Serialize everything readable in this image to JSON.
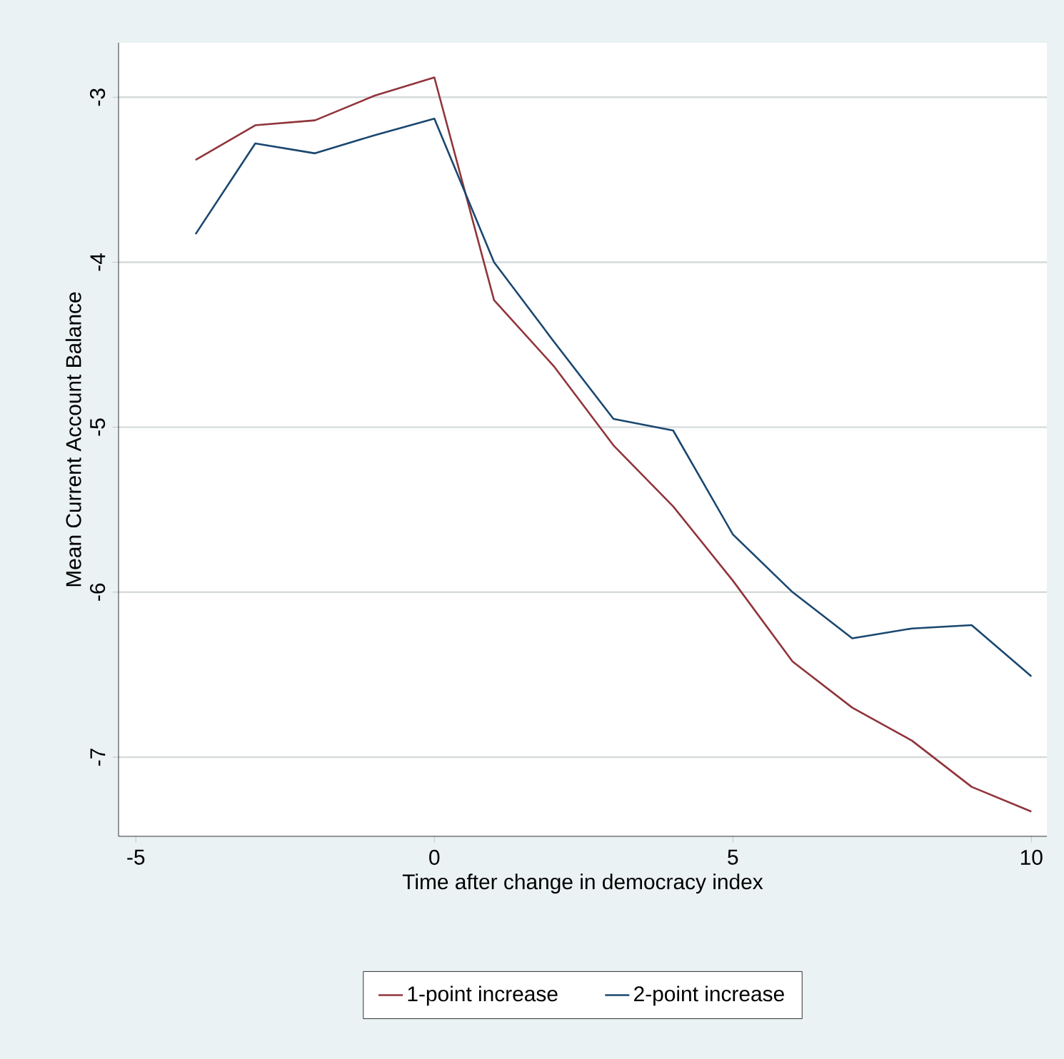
{
  "chart_data": {
    "type": "line",
    "xlabel": "Time after change in democracy index",
    "ylabel": "Mean Current Account Balance",
    "x": [
      -4,
      -3,
      -2,
      -1,
      0,
      1,
      2,
      3,
      4,
      5,
      6,
      7,
      8,
      9,
      10
    ],
    "series": [
      {
        "name": "1-point increase",
        "color": "#90353b",
        "values": [
          -3.38,
          -3.17,
          -3.14,
          -2.99,
          -2.88,
          -4.23,
          -4.63,
          -5.11,
          -5.48,
          -5.93,
          -6.42,
          -6.7,
          -6.9,
          -7.18,
          -7.33
        ]
      },
      {
        "name": "2-point increase",
        "color": "#1a476f",
        "values": [
          -3.83,
          -3.28,
          -3.34,
          -3.23,
          -3.13,
          -4.0,
          -4.48,
          -4.95,
          -5.02,
          -5.65,
          -6.0,
          -6.28,
          -6.22,
          -6.2,
          -6.51
        ]
      }
    ],
    "xlim": [
      -5.29,
      10.26
    ],
    "ylim": [
      -7.48,
      -2.67
    ],
    "xticks": [
      -5,
      0,
      5,
      10
    ],
    "yticks": [
      -7,
      -6,
      -5,
      -4,
      -3
    ],
    "grid": "y",
    "legend": "bottom",
    "marker": "none",
    "line_style": "solid"
  }
}
